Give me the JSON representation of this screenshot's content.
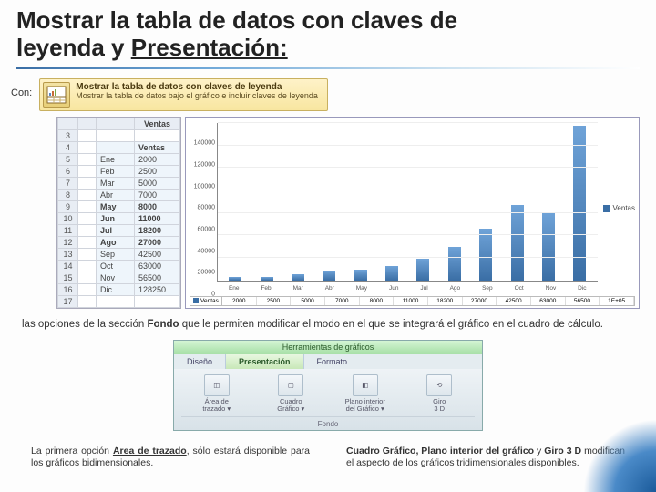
{
  "title_line1": "Mostrar la tabla de datos con claves de",
  "title_line2_a": "leyenda y ",
  "title_line2_u": "Presentación:",
  "con_label": "Con:",
  "tooltip": {
    "title": "Mostrar la tabla de datos con claves de leyenda",
    "sub": "Mostrar la tabla de datos bajo el gráfico e incluir claves de leyenda"
  },
  "sheet": {
    "row_headers": [
      "3",
      "4",
      "5",
      "6",
      "7",
      "8",
      "9",
      "10",
      "11",
      "12",
      "13",
      "14",
      "15",
      "16",
      "17"
    ],
    "col_b_header": "",
    "col_c_header": "Ventas",
    "months": [
      "Ene",
      "Feb",
      "Mar",
      "Abr",
      "May",
      "Jun",
      "Jul",
      "Ago",
      "Sep",
      "Oct",
      "Nov",
      "Dic"
    ],
    "values": [
      "2000",
      "2500",
      "5000",
      "7000",
      "8000",
      "11000",
      "18200",
      "27000",
      "42500",
      "63000",
      "56500",
      "128250"
    ]
  },
  "chart": {
    "legend": "Ventas",
    "yticks": [
      "0",
      "20000",
      "40000",
      "60000",
      "80000",
      "100000",
      "120000",
      "140000"
    ],
    "bar_heights_pct": [
      2,
      2,
      4,
      6,
      7,
      9,
      14,
      21,
      33,
      48,
      43,
      98
    ],
    "xlabels": [
      "Ene",
      "Feb",
      "Mar",
      "Abr",
      "May",
      "Jun",
      "Jul",
      "Ago",
      "Sep",
      "Oct",
      "Nov",
      "Dic"
    ],
    "dt_label": "Ventas",
    "dt_vals": [
      "2000",
      "2500",
      "5000",
      "7000",
      "8000",
      "11000",
      "18200",
      "27000",
      "42500",
      "63000",
      "56500",
      "1E+05"
    ]
  },
  "para_mid": "las opciones de la sección Fondo que le permiten modificar el modo en el que se integrará el gráfico en el cuadro de cálculo.",
  "ribbon": {
    "title": "Herramientas de gráficos",
    "tabs": [
      "Diseño",
      "Presentación",
      "Formato"
    ],
    "btns": [
      {
        "l1": "Área de",
        "l2": "trazado ▾"
      },
      {
        "l1": "Cuadro",
        "l2": "Gráfico ▾"
      },
      {
        "l1": "Plano interior",
        "l2": "del Gráfico ▾"
      },
      {
        "l1": "Giro",
        "l2": "3 D"
      }
    ],
    "group": "Fondo"
  },
  "col_left": "La primera opción Área de trazado, sólo estará disponible para los gráficos bidimensionales.",
  "col_right": "Cuadro Gráfico, Plano interior del gráfico y Giro 3 D modifican el aspecto de los gráficos tridimensionales disponibles."
}
